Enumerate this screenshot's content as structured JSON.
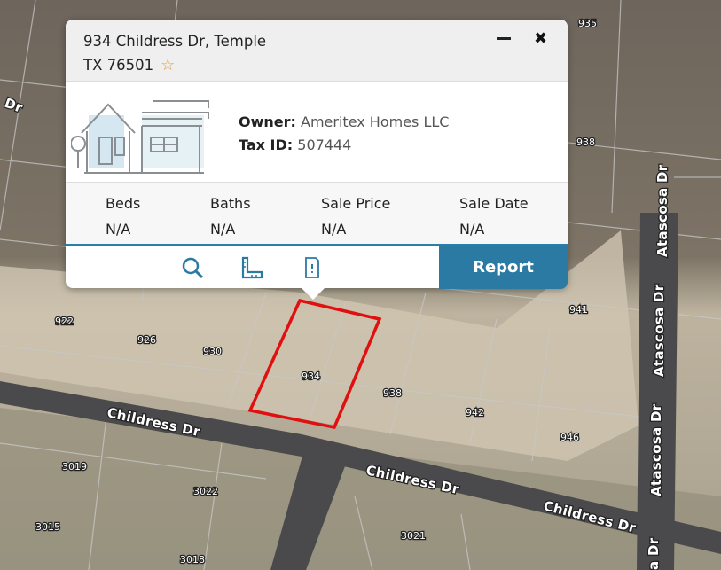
{
  "popup": {
    "address_line1": "934 Childress Dr, Temple",
    "address_line2": "TX 76501",
    "favorite_icon": "star-outline-icon",
    "minimize_icon": "minus-icon",
    "close_icon": "close-x-icon",
    "owner_label": "Owner:",
    "owner_value": "Ameritex Homes LLC",
    "taxid_label": "Tax ID:",
    "taxid_value": "507444",
    "stats": [
      {
        "label": "Beds",
        "value": "N/A"
      },
      {
        "label": "Baths",
        "value": "N/A"
      },
      {
        "label": "Sale Price",
        "value": "N/A"
      },
      {
        "label": "Sale Date",
        "value": "N/A"
      }
    ],
    "actions": [
      "search-icon",
      "ruler-icon",
      "document-alert-icon"
    ],
    "report_label": "Report",
    "accent_color": "#2a7aa3",
    "highlight_color": "#e01010"
  },
  "map": {
    "parcels": [
      "935",
      "938",
      "941",
      "922",
      "926",
      "930",
      "934",
      "938",
      "942",
      "946",
      "3019",
      "3022",
      "3015",
      "3018",
      "3021"
    ],
    "streets": [
      "Dr",
      "Childress Dr",
      "Childress Dr",
      "Childress Dr",
      "Atascosa Dr",
      "Atascosa Dr",
      "Atascosa Dr",
      "a Dr"
    ]
  }
}
